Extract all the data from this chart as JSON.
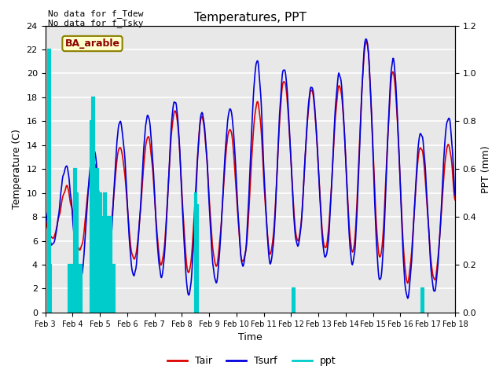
{
  "title": "Temperatures, PPT",
  "xlabel": "Time",
  "ylabel_left": "Temperature (C)",
  "ylabel_right": "PPT (mm)",
  "annotation_text": "No data for f_Tdew\nNo data for f_Tsky",
  "box_label": "BA_arable",
  "legend_entries": [
    "Tair",
    "Tsurf",
    "ppt"
  ],
  "tair_color": "#dd0000",
  "tsurf_color": "#0000dd",
  "ppt_color": "#00cccc",
  "bg_color": "#e8e8e8",
  "ylim_left": [
    0,
    24
  ],
  "ylim_right": [
    0.0,
    1.2
  ],
  "yticks_left": [
    0,
    2,
    4,
    6,
    8,
    10,
    12,
    14,
    16,
    18,
    20,
    22,
    24
  ],
  "yticks_right": [
    0.0,
    0.2,
    0.4,
    0.6,
    0.8,
    1.0,
    1.2
  ],
  "xtick_labels": [
    "Feb 3",
    "Feb 4",
    "Feb 5",
    "Feb 6",
    "Feb 7",
    "Feb 8",
    "Feb 9",
    "Feb 10",
    "Feb 11",
    "Feb 12",
    "Feb 13",
    "Feb 14",
    "Feb 15",
    "Feb 16",
    "Feb 17",
    "Feb 18"
  ],
  "grid_color": "white",
  "linewidth_temp": 1.2,
  "figsize": [
    6.4,
    4.8
  ],
  "dpi": 100
}
